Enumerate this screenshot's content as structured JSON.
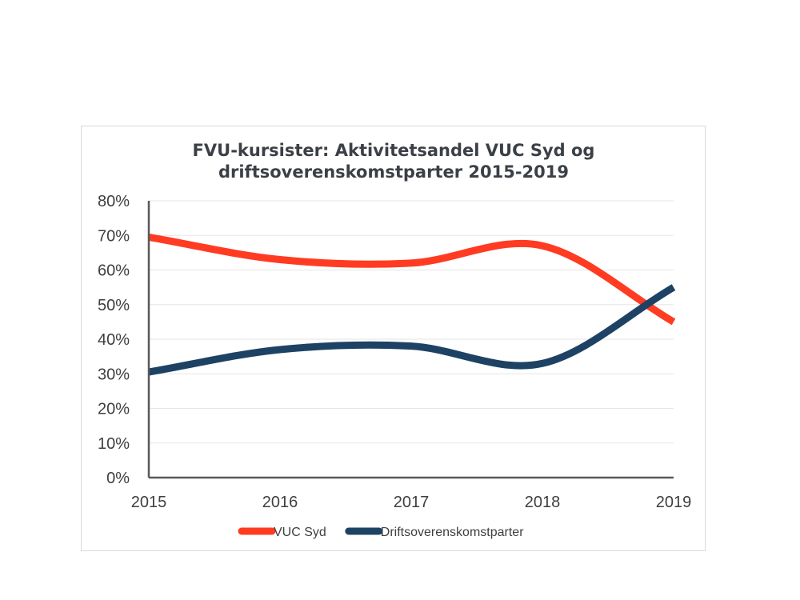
{
  "chart_data": {
    "type": "line",
    "title_lines": [
      "FVU-kursister: Aktivitetsandel VUC Syd og",
      "driftsoverenskomstparter 2015-2019"
    ],
    "x": [
      "2015",
      "2016",
      "2017",
      "2018",
      "2019"
    ],
    "y_ticks": [
      "0%",
      "10%",
      "20%",
      "30%",
      "40%",
      "50%",
      "60%",
      "70%",
      "80%"
    ],
    "ylim": [
      0,
      80
    ],
    "smooth": true,
    "grid": "horizontal",
    "legend_position": "bottom",
    "series": [
      {
        "name": "VUC Syd",
        "color": "#ff3b22",
        "values": [
          69.5,
          63,
          62,
          67,
          45
        ]
      },
      {
        "name": "Driftsoverenskomstparter",
        "color": "#1d4264",
        "values": [
          30.5,
          37,
          38,
          33,
          55
        ]
      }
    ]
  }
}
